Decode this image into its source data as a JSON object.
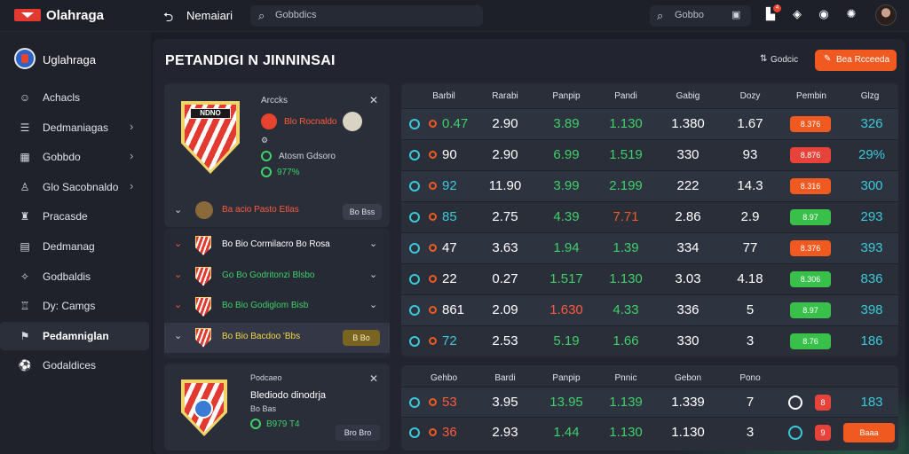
{
  "topbar": {
    "brand": "Olahraga",
    "back_icon": "back-arrow-icon",
    "nav_title": "Nemaiari",
    "search_placeholder": "Gobbdics",
    "search2_placeholder": "Gobbo",
    "notification_count": "4"
  },
  "sidebar": {
    "header": "Uglahraga",
    "items": [
      {
        "label": "Achacls",
        "icon": "user-icon",
        "chevron": false
      },
      {
        "label": "Dedmaniagas",
        "icon": "list-icon",
        "chevron": true
      },
      {
        "label": "Gobbdo",
        "icon": "grid-icon",
        "chevron": true
      },
      {
        "label": "Glo Sacobnaldo",
        "icon": "person-icon",
        "chevron": true
      },
      {
        "label": "Pracasde",
        "icon": "trophy-icon",
        "chevron": false
      },
      {
        "label": "Dedmanag",
        "icon": "calendar-icon",
        "chevron": false
      },
      {
        "label": "Godbaldis",
        "icon": "star-icon",
        "chevron": false
      },
      {
        "label": "Dy: Camgs",
        "icon": "trophy2-icon",
        "chevron": false
      },
      {
        "label": "Pedamniglan",
        "icon": "flag-icon",
        "chevron": false,
        "active": true
      },
      {
        "label": "Godaldices",
        "icon": "ball-icon",
        "chevron": false
      }
    ]
  },
  "main": {
    "title": "PETANDIGI N JINNINSAI",
    "btn_small": "Godcic",
    "btn_primary": "Bea Rcceeda"
  },
  "match_card": {
    "crest_text": "NDNO",
    "header": "Arccks",
    "line1": "Blo Rocnaldo",
    "line2": "Atosm Gdsoro",
    "line3": "977%",
    "footer_label": "Ba acio Pasto Etlas",
    "footer_btn": "Bo Bss",
    "subrows": [
      {
        "label": "Bo Bio Cormilacro Bo Rosa",
        "color": "white"
      },
      {
        "label": "Go Bo Godritonzi Blsbo",
        "color": "green"
      },
      {
        "label": "Bo Bio Godiglom Bisb",
        "color": "green"
      },
      {
        "label": "Bo Bio Bacdoo 'Bbs",
        "color": "yellow",
        "btn": "B Bo",
        "active": true
      }
    ]
  },
  "match_card2": {
    "header": "Podcaeo",
    "title": "Blediodo dinodrja",
    "sub": "Bo Bas",
    "pct": "B979 T4",
    "btn": "Bro Bro"
  },
  "odds_table": {
    "headers": [
      "Barbil",
      "Rarabi",
      "Panpip",
      "Pandi",
      "Gabig",
      "Dozy",
      "Pembin",
      "Glzg"
    ],
    "rows": [
      {
        "a": "0.47",
        "a_color": "green",
        "c1": "2.90",
        "c2": "3.89",
        "c3": "1.130",
        "c4": "1.380",
        "c5": "1.67",
        "chip": "8.376",
        "chip_color": "orange",
        "last": "326",
        "last_color": "cyan"
      },
      {
        "a": "90",
        "a_color": "white",
        "c1": "2.90",
        "c2": "6.99",
        "c3": "1.519",
        "c4": "330",
        "c5": "93",
        "chip": "8.876",
        "chip_color": "red",
        "last": "29%",
        "last_color": "cyan"
      },
      {
        "a": "92",
        "a_color": "cyan",
        "c1": "11.90",
        "c2": "3.99",
        "c3": "2.199",
        "c4": "222",
        "c5": "14.3",
        "chip": "8.316",
        "chip_color": "orange",
        "last": "300",
        "last_color": "cyan"
      },
      {
        "a": "85",
        "a_color": "cyan",
        "c1": "2.75",
        "c2": "4.39",
        "c3": "7.71",
        "c4": "2.86",
        "c5": "2.9",
        "chip": "8.97",
        "chip_color": "green",
        "last": "293",
        "last_color": "cyan"
      },
      {
        "a": "47",
        "a_color": "white",
        "c1": "3.63",
        "c2": "1.94",
        "c3": "1.39",
        "c4": "334",
        "c5": "77",
        "chip": "8.376",
        "chip_color": "orange",
        "last": "393",
        "last_color": "cyan"
      },
      {
        "a": "22",
        "a_color": "white",
        "c1": "0.27",
        "c2": "1.517",
        "c3": "1.130",
        "c4": "3.03",
        "c5": "4.18",
        "chip": "8.306",
        "chip_color": "green",
        "last": "836",
        "last_color": "cyan"
      },
      {
        "a": "861",
        "a_color": "white",
        "c1": "2.09",
        "c2": "1.630",
        "c3": "4.33",
        "c4": "336",
        "c5": "5",
        "chip": "8.97",
        "chip_color": "green",
        "last": "398",
        "last_color": "cyan"
      },
      {
        "a": "72",
        "a_color": "cyan",
        "c1": "2.53",
        "c2": "5.19",
        "c3": "1.66",
        "c4": "330",
        "c5": "3",
        "chip": "8.76",
        "chip_color": "green",
        "last": "186",
        "last_color": "cyan"
      }
    ]
  },
  "odds_table2": {
    "headers": [
      "Gehbo",
      "Bardi",
      "Panpip",
      "Pnnic",
      "Gebon",
      "Pono"
    ],
    "rows": [
      {
        "a": "53",
        "a_color": "red",
        "c1": "3.95",
        "c2": "13.95",
        "c3": "1.139",
        "c4": "1.339",
        "c5": "7",
        "chip": "8",
        "last": "183"
      },
      {
        "a": "36",
        "a_color": "red",
        "c1": "2.93",
        "c2": "1.44",
        "c3": "1.130",
        "c4": "1.130",
        "c5": "3",
        "chip": "9",
        "last": "Baaa"
      }
    ]
  },
  "colors": {
    "accent": "#f0591f",
    "green": "#3fd06a",
    "red": "#ff5a3c",
    "cyan": "#3ac9d9"
  }
}
